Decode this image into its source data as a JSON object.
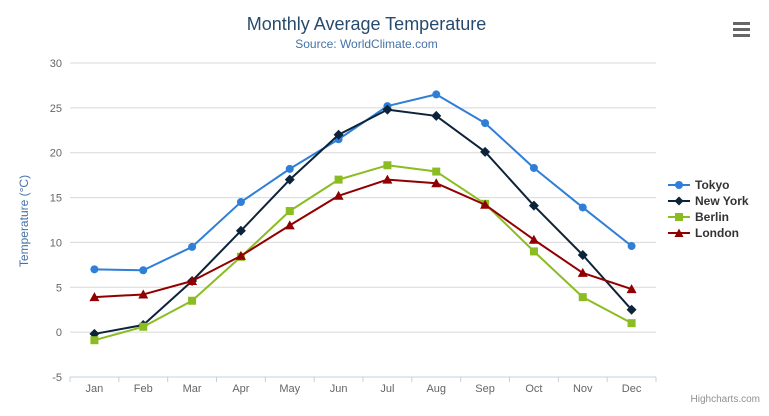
{
  "header": {
    "title": "Monthly Average Temperature",
    "subtitle": "Source: WorldClimate.com",
    "menu_icon": "hamburger-menu-icon"
  },
  "credits": "Highcharts.com",
  "colors": {
    "title": "#274b6d",
    "subtitle": "#4572a7",
    "axis_title": "#4572a7",
    "tick_label": "#666666",
    "grid_line": "#d8d8d8",
    "axis_line": "#c0d0e0",
    "legend_text": "#333333",
    "credits_text": "#909090",
    "background": "#ffffff"
  },
  "chart_data": {
    "type": "line",
    "title": "Monthly Average Temperature",
    "subtitle": "Source: WorldClimate.com",
    "categories": [
      "Jan",
      "Feb",
      "Mar",
      "Apr",
      "May",
      "Jun",
      "Jul",
      "Aug",
      "Sep",
      "Oct",
      "Nov",
      "Dec"
    ],
    "series": [
      {
        "name": "Tokyo",
        "color": "#2f7ed8",
        "marker": "circle",
        "values": [
          7.0,
          6.9,
          9.5,
          14.5,
          18.2,
          21.5,
          25.2,
          26.5,
          23.3,
          18.3,
          13.9,
          9.6
        ]
      },
      {
        "name": "New York",
        "color": "#0d233a",
        "marker": "diamond",
        "values": [
          -0.2,
          0.8,
          5.7,
          11.3,
          17.0,
          22.0,
          24.8,
          24.1,
          20.1,
          14.1,
          8.6,
          2.5
        ]
      },
      {
        "name": "Berlin",
        "color": "#8bbc21",
        "marker": "square",
        "values": [
          -0.9,
          0.6,
          3.5,
          8.4,
          13.5,
          17.0,
          18.6,
          17.9,
          14.3,
          9.0,
          3.9,
          1.0
        ]
      },
      {
        "name": "London",
        "color": "#910000",
        "marker": "triangle",
        "values": [
          3.9,
          4.2,
          5.7,
          8.5,
          11.9,
          15.2,
          17.0,
          16.6,
          14.2,
          10.3,
          6.6,
          4.8
        ]
      }
    ],
    "xlabel": "",
    "ylabel": "Temperature (°C)",
    "ylim": [
      -5,
      30
    ],
    "ytick_interval": 5,
    "ytick_labels": [
      "30",
      "25",
      "20",
      "15",
      "10",
      "5",
      "0",
      "-5"
    ],
    "legend_position": "right",
    "grid": true
  }
}
